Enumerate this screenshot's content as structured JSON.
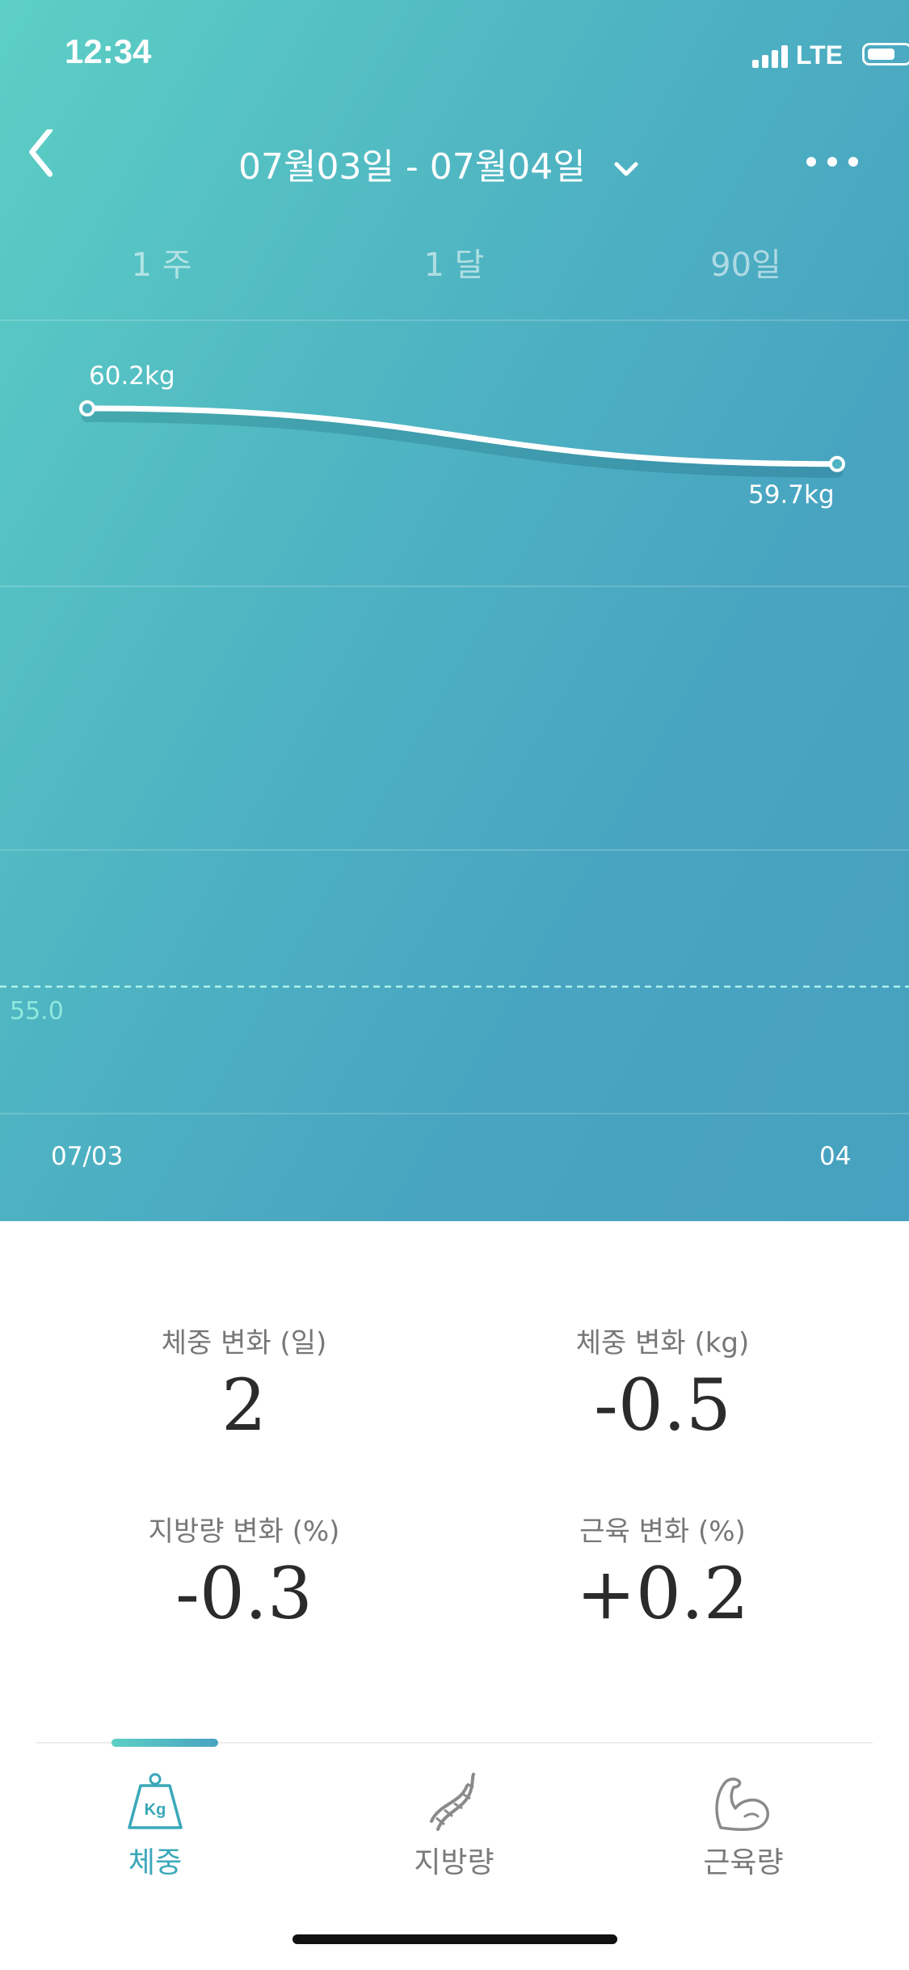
{
  "status_bar": {
    "time": "12:34",
    "network": "LTE",
    "battery_level": 0.65,
    "signal_bars": 4
  },
  "header": {
    "date_range": "07월03일 - 07월04일"
  },
  "period_tabs": [
    {
      "label": "1 주"
    },
    {
      "label": "1 달"
    },
    {
      "label": "90일"
    }
  ],
  "chart_data": {
    "type": "line",
    "x": [
      "07/03",
      "04"
    ],
    "series": [
      {
        "values": [
          60.2,
          59.7
        ]
      }
    ],
    "point_labels": [
      "60.2kg",
      "59.7kg"
    ],
    "reference_line": {
      "value": 55.0,
      "label": "55.0",
      "style": "dashed"
    },
    "grid": true
  },
  "stats": {
    "weight_change_days": {
      "label": "체중 변화 (일)",
      "value": "2"
    },
    "weight_change_kg": {
      "label": "체중 변화 (kg)",
      "value": "-0.5"
    },
    "fat_change_pct": {
      "label": "지방량 변화 (%)",
      "value": "-0.3"
    },
    "muscle_change_pct": {
      "label": "근육 변화 (%)",
      "value": "+0.2"
    }
  },
  "bottom_tabs": [
    {
      "label": "체중",
      "icon": "kg-weight-icon",
      "active": true
    },
    {
      "label": "지방량",
      "icon": "dna-icon",
      "active": false
    },
    {
      "label": "근육량",
      "icon": "muscle-arm-icon",
      "active": false
    }
  ],
  "colors": {
    "accent": "#39a8b9",
    "gradient_start": "#5ccfc5",
    "gradient_end": "#47a1c0"
  }
}
